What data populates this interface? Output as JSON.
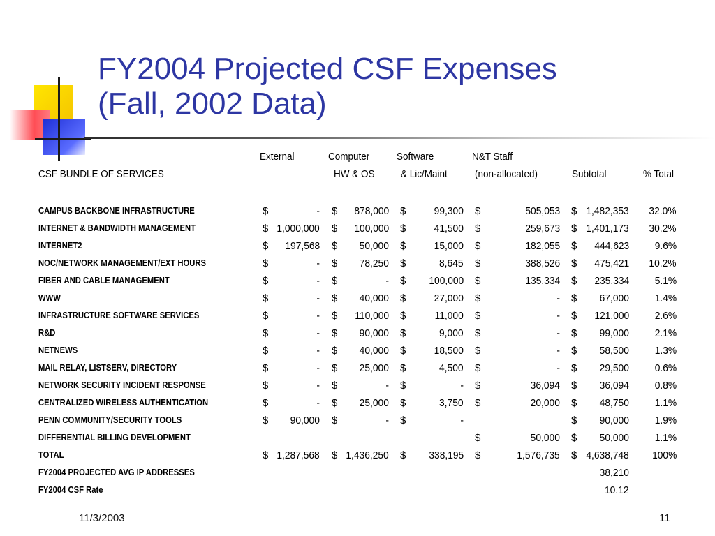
{
  "slide": {
    "title_line1": "FY2004 Projected CSF Expenses",
    "title_line2": "(Fall, 2002 Data)",
    "date": "11/3/2003",
    "page_number": "11"
  },
  "colors": {
    "title": "#2d36a3"
  },
  "table": {
    "header_row1": [
      "External",
      "Computer",
      "Software",
      "N&T Staff"
    ],
    "header_row2": {
      "bundle": "CSF BUNDLE OF SERVICES",
      "computer": "HW & OS",
      "software": "& Lic/Maint",
      "staff": "(non-allocated)",
      "subtotal": "Subtotal",
      "pct": "% Total"
    },
    "rows": [
      {
        "label": "CAMPUS BACKBONE INFRASTRUCTURE",
        "c": [
          [
            "$",
            "-"
          ],
          [
            "$",
            "878,000"
          ],
          [
            "$",
            "99,300"
          ],
          [
            "$",
            "505,053"
          ],
          [
            "$",
            "1,482,353"
          ]
        ],
        "pct": "32.0%"
      },
      {
        "label": "INTERNET & BANDWIDTH MANAGEMENT",
        "c": [
          [
            "$",
            "1,000,000"
          ],
          [
            "$",
            "100,000"
          ],
          [
            "$",
            "41,500"
          ],
          [
            "$",
            "259,673"
          ],
          [
            "$",
            "1,401,173"
          ]
        ],
        "pct": "30.2%"
      },
      {
        "label": "INTERNET2",
        "c": [
          [
            "$",
            "197,568"
          ],
          [
            "$",
            "50,000"
          ],
          [
            "$",
            "15,000"
          ],
          [
            "$",
            "182,055"
          ],
          [
            "$",
            "444,623"
          ]
        ],
        "pct": "9.6%"
      },
      {
        "label": "NOC/NETWORK MANAGEMENT/EXT HOURS",
        "c": [
          [
            "$",
            "-"
          ],
          [
            "$",
            "78,250"
          ],
          [
            "$",
            "8,645"
          ],
          [
            "$",
            "388,526"
          ],
          [
            "$",
            "475,421"
          ]
        ],
        "pct": "10.2%"
      },
      {
        "label": "FIBER AND CABLE MANAGEMENT",
        "c": [
          [
            "$",
            "-"
          ],
          [
            "$",
            "-"
          ],
          [
            "$",
            "100,000"
          ],
          [
            "$",
            "135,334"
          ],
          [
            "$",
            "235,334"
          ]
        ],
        "pct": "5.1%"
      },
      {
        "label": "WWW",
        "c": [
          [
            "$",
            "-"
          ],
          [
            "$",
            "40,000"
          ],
          [
            "$",
            "27,000"
          ],
          [
            "$",
            "-"
          ],
          [
            "$",
            "67,000"
          ]
        ],
        "pct": "1.4%"
      },
      {
        "label": "INFRASTRUCTURE SOFTWARE SERVICES",
        "c": [
          [
            "$",
            "-"
          ],
          [
            "$",
            "110,000"
          ],
          [
            "$",
            "11,000"
          ],
          [
            "$",
            "-"
          ],
          [
            "$",
            "121,000"
          ]
        ],
        "pct": "2.6%"
      },
      {
        "label": "R&D",
        "c": [
          [
            "$",
            "-"
          ],
          [
            "$",
            "90,000"
          ],
          [
            "$",
            "9,000"
          ],
          [
            "$",
            "-"
          ],
          [
            "$",
            "99,000"
          ]
        ],
        "pct": "2.1%"
      },
      {
        "label": "NETNEWS",
        "c": [
          [
            "$",
            "-"
          ],
          [
            "$",
            "40,000"
          ],
          [
            "$",
            "18,500"
          ],
          [
            "$",
            "-"
          ],
          [
            "$",
            "58,500"
          ]
        ],
        "pct": "1.3%"
      },
      {
        "label": "MAIL RELAY, LISTSERV, DIRECTORY",
        "c": [
          [
            "$",
            "-"
          ],
          [
            "$",
            "25,000"
          ],
          [
            "$",
            "4,500"
          ],
          [
            "$",
            "-"
          ],
          [
            "$",
            "29,500"
          ]
        ],
        "pct": "0.6%"
      },
      {
        "label": "NETWORK SECURITY INCIDENT RESPONSE",
        "c": [
          [
            "$",
            "-"
          ],
          [
            "$",
            "-"
          ],
          [
            "$",
            "-"
          ],
          [
            "$",
            "36,094"
          ],
          [
            "$",
            "36,094"
          ]
        ],
        "pct": "0.8%"
      },
      {
        "label": "CENTRALIZED WIRELESS AUTHENTICATION",
        "c": [
          [
            "$",
            "-"
          ],
          [
            "$",
            "25,000"
          ],
          [
            "$",
            "3,750"
          ],
          [
            "$",
            "20,000"
          ],
          [
            "$",
            "48,750"
          ]
        ],
        "pct": "1.1%"
      },
      {
        "label": "PENN COMMUNITY/SECURITY TOOLS",
        "c": [
          [
            "$",
            "90,000"
          ],
          [
            "$",
            "-"
          ],
          [
            "$",
            "-"
          ],
          [
            "",
            ""
          ],
          [
            "$",
            "90,000"
          ]
        ],
        "pct": "1.9%"
      },
      {
        "label": "DIFFERENTIAL BILLING DEVELOPMENT",
        "c": [
          [
            "",
            ""
          ],
          [
            "",
            ""
          ],
          [
            "",
            ""
          ],
          [
            "$",
            "50,000"
          ],
          [
            "$",
            "50,000"
          ]
        ],
        "pct": "1.1%"
      },
      {
        "label": "TOTAL",
        "c": [
          [
            "$",
            "1,287,568"
          ],
          [
            "$",
            "1,436,250"
          ],
          [
            "$",
            "338,195"
          ],
          [
            "$",
            "1,576,735"
          ],
          [
            "$",
            "4,638,748"
          ]
        ],
        "pct": "100%"
      },
      {
        "label": "FY2004 PROJECTED AVG IP ADDRESSES",
        "c": [
          [
            "",
            ""
          ],
          [
            "",
            ""
          ],
          [
            "",
            ""
          ],
          [
            "",
            ""
          ],
          [
            "",
            "38,210"
          ]
        ],
        "pct": ""
      },
      {
        "label": "FY2004 CSF Rate",
        "c": [
          [
            "",
            ""
          ],
          [
            "",
            ""
          ],
          [
            "",
            ""
          ],
          [
            "",
            ""
          ],
          [
            "",
            "10.12"
          ]
        ],
        "pct": ""
      }
    ]
  }
}
